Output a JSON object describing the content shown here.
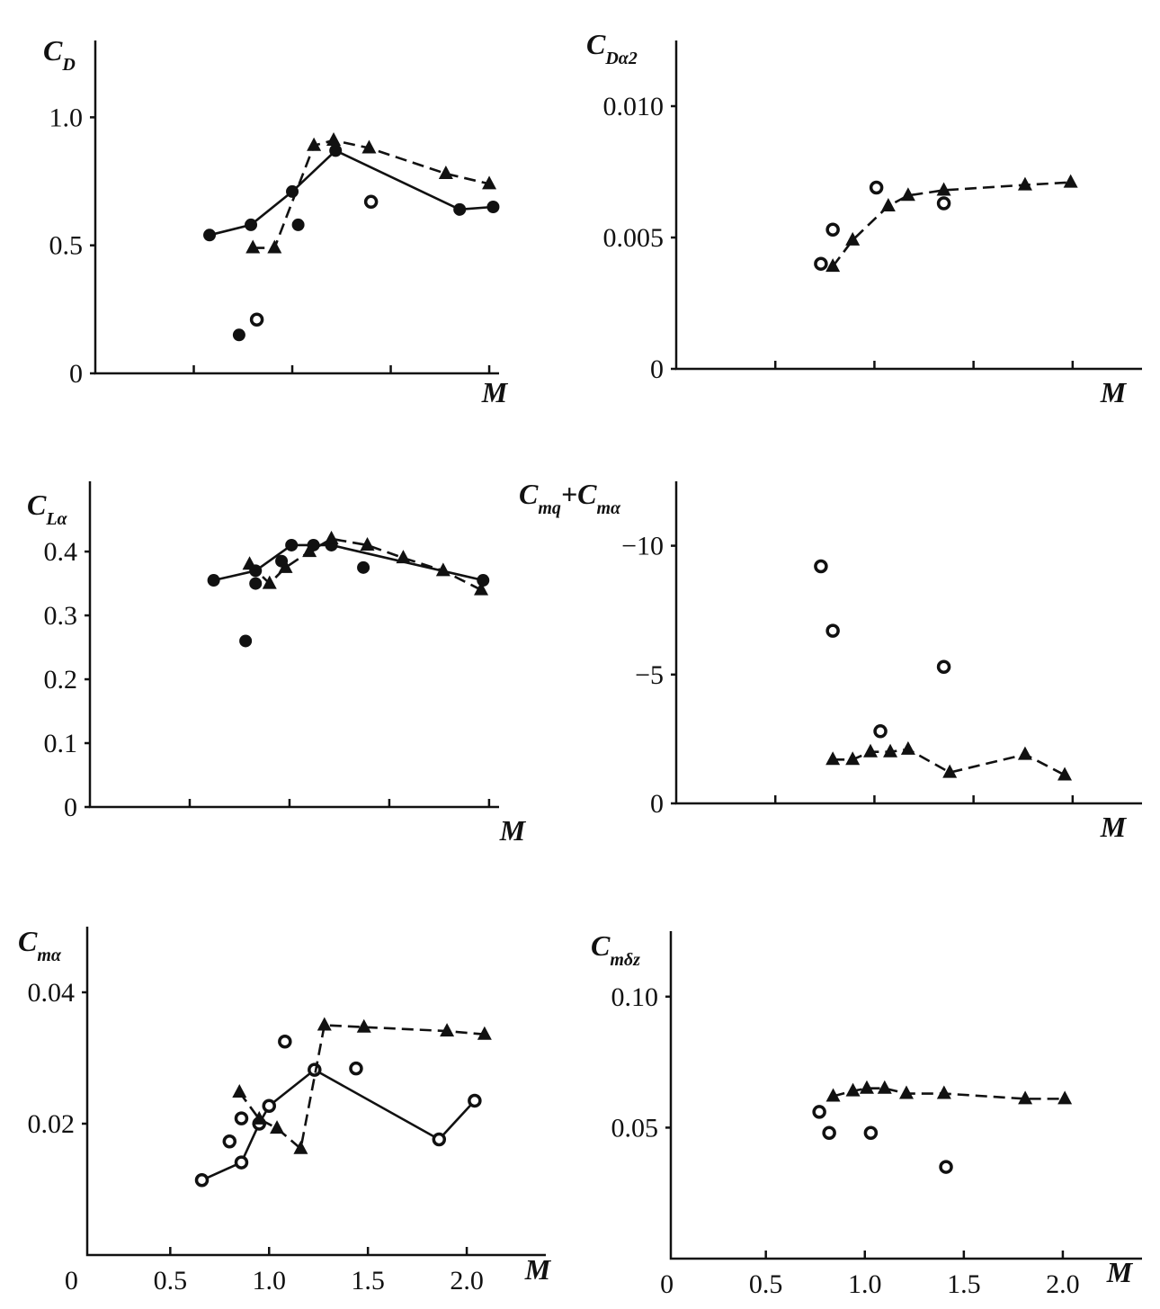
{
  "chart_data": [
    {
      "type": "line",
      "ylabel": [
        "C",
        "D"
      ],
      "xlabel": "M",
      "xlim": [
        0,
        2.05
      ],
      "xticks": [
        0.5,
        1,
        1.5,
        2
      ],
      "xtick_labels": false,
      "ylim": [
        0,
        1.3
      ],
      "yticks": [
        0,
        0.5,
        {
          "value": 1,
          "label": "1.0"
        }
      ],
      "series": [
        {
          "color": "#111",
          "line": "solid",
          "marker": "filled-circle",
          "x": [
            0.58,
            0.79,
            1.0,
            1.22,
            1.85,
            2.02
          ],
          "values": [
            0.54,
            0.58,
            0.71,
            0.87,
            0.64,
            0.65
          ]
        },
        {
          "color": "#111",
          "line": "dashed",
          "marker": "triangle",
          "x": [
            0.8,
            0.91,
            1.11,
            1.21,
            1.39,
            1.78,
            2.0
          ],
          "values": [
            0.49,
            0.49,
            0.89,
            0.91,
            0.88,
            0.78,
            0.74
          ]
        },
        {
          "color": "#111",
          "line": "none",
          "marker": "filled-circle",
          "x": [
            0.73,
            1.03
          ],
          "values": [
            0.15,
            0.58
          ]
        },
        {
          "color": "#111",
          "line": "none",
          "marker": "open-circle",
          "x": [
            0.82,
            1.4
          ],
          "values": [
            0.21,
            0.67
          ]
        }
      ]
    },
    {
      "type": "line",
      "ylabel": [
        "C",
        "Dα2"
      ],
      "xlabel": "M",
      "xlim": [
        0,
        2.35
      ],
      "xticks": [
        0.5,
        1,
        1.5,
        2
      ],
      "xtick_labels": false,
      "ylim": [
        0,
        0.0125
      ],
      "yticks": [
        0,
        0.005,
        {
          "value": 0.01,
          "label": "0.010"
        }
      ],
      "series": [
        {
          "color": "#111",
          "line": "dashed",
          "marker": "triangle",
          "x": [
            0.79,
            0.89,
            1.07,
            1.17,
            1.35,
            1.76,
            1.99
          ],
          "values": [
            0.0039,
            0.0049,
            0.0062,
            0.0066,
            0.0068,
            0.007,
            0.0071
          ]
        },
        {
          "color": "#111",
          "line": "none",
          "marker": "open-circle",
          "x": [
            0.73,
            0.79,
            1.01,
            1.35
          ],
          "values": [
            0.004,
            0.0053,
            0.0069,
            0.0063
          ]
        }
      ]
    },
    {
      "type": "line",
      "ylabel": [
        "C",
        "Lα"
      ],
      "xlabel": "M",
      "xlim": [
        0,
        2.05
      ],
      "xticks": [
        0.5,
        1,
        1.5,
        2
      ],
      "xtick_labels": false,
      "ylim": [
        0,
        0.51
      ],
      "yticks": [
        0,
        0.1,
        0.2,
        0.3,
        0.4
      ],
      "series": [
        {
          "color": "#111",
          "line": "solid",
          "marker": "filled-circle",
          "x": [
            0.62,
            0.83,
            1.01,
            1.12,
            1.21,
            1.97
          ],
          "values": [
            0.355,
            0.37,
            0.41,
            0.41,
            0.41,
            0.355
          ]
        },
        {
          "color": "#111",
          "line": "dashed",
          "marker": "triangle",
          "x": [
            0.8,
            0.9,
            0.98,
            1.1,
            1.21,
            1.39,
            1.57,
            1.77,
            1.96
          ],
          "values": [
            0.38,
            0.35,
            0.375,
            0.4,
            0.42,
            0.41,
            0.39,
            0.37,
            0.34
          ]
        },
        {
          "color": "#111",
          "line": "none",
          "marker": "filled-circle",
          "x": [
            0.78,
            0.83,
            0.96,
            1.37
          ],
          "values": [
            0.26,
            0.35,
            0.385,
            0.375
          ]
        }
      ]
    },
    {
      "type": "line",
      "ylabel": [
        "C",
        "mq",
        "+C",
        "mα"
      ],
      "xlabel": "M",
      "xlim": [
        0,
        2.35
      ],
      "xticks": [
        0.5,
        1,
        1.5,
        2
      ],
      "xtick_labels": false,
      "ylim": [
        0,
        -12.5
      ],
      "yticks": [
        {
          "value": -10,
          "label": "−10"
        },
        {
          "value": -5,
          "label": "−5"
        },
        0
      ],
      "series": [
        {
          "color": "#111",
          "line": "dashed",
          "marker": "triangle",
          "x": [
            0.79,
            0.89,
            0.98,
            1.08,
            1.17,
            1.38,
            1.76,
            1.96
          ],
          "values": [
            -1.7,
            -1.7,
            -2.0,
            -2.0,
            -2.1,
            -1.2,
            -1.9,
            -1.1
          ]
        },
        {
          "color": "#111",
          "line": "none",
          "marker": "open-circle",
          "x": [
            0.73,
            0.79,
            1.03,
            1.35
          ],
          "values": [
            -9.2,
            -6.7,
            -2.8,
            -5.3
          ]
        }
      ]
    },
    {
      "type": "line",
      "ylabel": [
        "C",
        "mα"
      ],
      "xlabel": "M",
      "xlim": [
        0.08,
        2.4
      ],
      "xticks": [
        0,
        0.5,
        {
          "value": 1,
          "label": "1.0"
        },
        1.5,
        {
          "value": 2,
          "label": "2.0"
        }
      ],
      "xtick_labels": true,
      "ylim": [
        0,
        0.05
      ],
      "yticks": [
        0.02,
        0.04
      ],
      "series": [
        {
          "color": "#111",
          "line": "solid",
          "marker": "open-circle",
          "x": [
            0.66,
            0.86,
            0.95,
            1.0,
            1.23,
            1.86,
            2.04
          ],
          "values": [
            0.0114,
            0.0141,
            0.02,
            0.0227,
            0.0282,
            0.0176,
            0.0235
          ]
        },
        {
          "color": "#111",
          "line": "dashed",
          "marker": "triangle",
          "x": [
            0.85,
            0.95,
            1.04,
            1.16,
            1.28,
            1.48,
            1.9,
            2.09
          ],
          "values": [
            0.0248,
            0.0207,
            0.0193,
            0.0162,
            0.035,
            0.0347,
            0.0341,
            0.0336
          ]
        },
        {
          "color": "#111",
          "line": "none",
          "marker": "open-circle",
          "x": [
            0.8,
            0.86,
            1.08,
            1.44
          ],
          "values": [
            0.0173,
            0.0208,
            0.0325,
            0.0284
          ]
        }
      ]
    },
    {
      "type": "line",
      "ylabel": [
        "C",
        "mδz"
      ],
      "xlabel": "M",
      "xlim": [
        0.02,
        2.4
      ],
      "xticks": [
        0,
        0.5,
        {
          "value": 1,
          "label": "1.0"
        },
        1.5,
        {
          "value": 2,
          "label": "2.0"
        }
      ],
      "xtick_labels": true,
      "ylim": [
        0,
        0.125
      ],
      "yticks": [
        0.05,
        {
          "value": 0.1,
          "label": "0.10"
        }
      ],
      "series": [
        {
          "color": "#111",
          "line": "dashed",
          "marker": "triangle",
          "x": [
            0.84,
            0.94,
            1.01,
            1.1,
            1.21,
            1.4,
            1.81,
            2.01
          ],
          "values": [
            0.062,
            0.064,
            0.065,
            0.065,
            0.063,
            0.063,
            0.061,
            0.061
          ]
        },
        {
          "color": "#111",
          "line": "none",
          "marker": "open-circle",
          "x": [
            0.77,
            0.82,
            1.03,
            1.41
          ],
          "values": [
            0.056,
            0.048,
            0.048,
            0.035
          ]
        }
      ]
    }
  ]
}
